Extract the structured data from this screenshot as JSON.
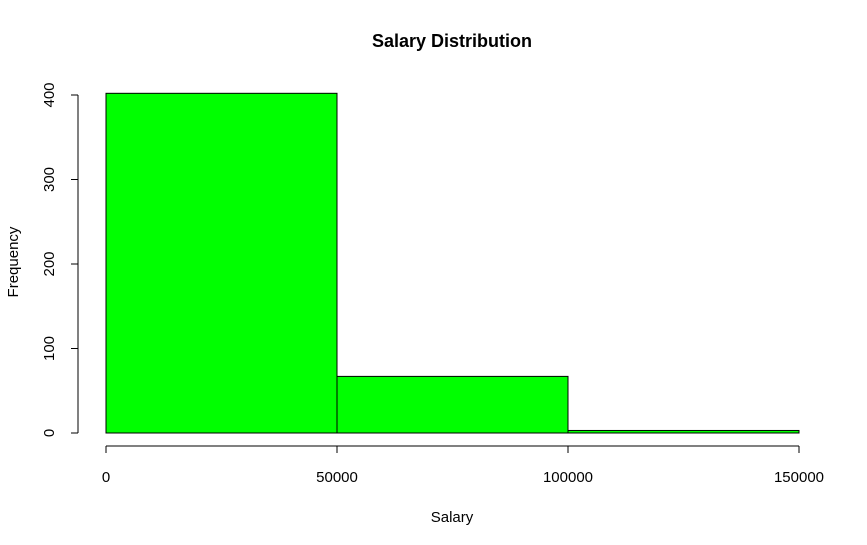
{
  "chart_data": {
    "type": "bar",
    "title": "Salary Distribution",
    "xlabel": "Salary",
    "ylabel": "Frequency",
    "bins": [
      {
        "from": 0,
        "to": 50000,
        "value": 402
      },
      {
        "from": 50000,
        "to": 100000,
        "value": 67
      },
      {
        "from": 100000,
        "to": 150000,
        "value": 3
      }
    ],
    "x_ticks": [
      "0",
      "50000",
      "100000",
      "150000"
    ],
    "y_ticks": [
      "0",
      "100",
      "200",
      "300",
      "400"
    ],
    "xlim": [
      0,
      150000
    ],
    "ylim": [
      0,
      400
    ],
    "bar_color": "#00ff00",
    "grid": false,
    "legend": "none"
  }
}
